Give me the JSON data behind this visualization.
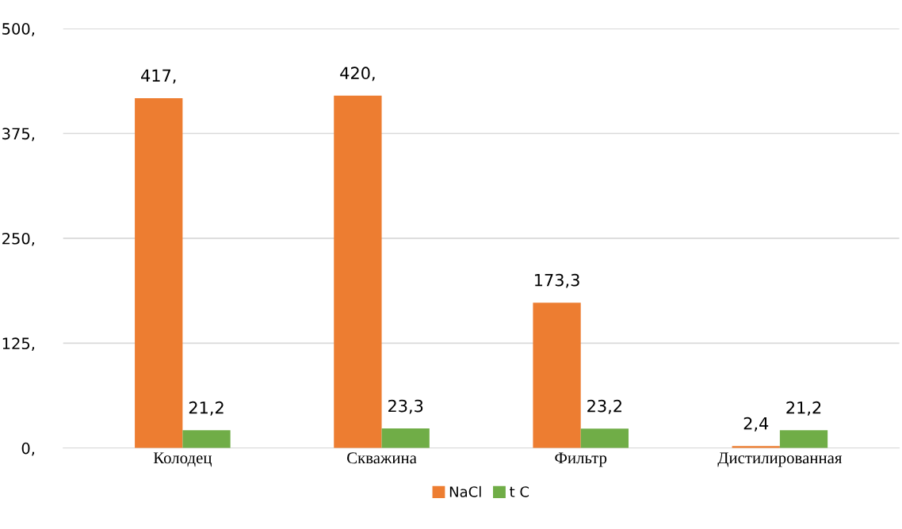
{
  "chart_data": {
    "type": "bar",
    "categories": [
      "Колодец",
      "Скважина",
      "Фильтр",
      "Дистилированная"
    ],
    "series": [
      {
        "name": "NaCl",
        "color": "#ed7d31",
        "values": [
          417,
          420,
          173.3,
          2.4
        ],
        "value_labels": [
          "417,",
          "420,",
          "173,3",
          "2,4"
        ]
      },
      {
        "name": "t C",
        "color": "#70ad47",
        "values": [
          21.2,
          23.3,
          23.2,
          21.2
        ],
        "value_labels": [
          "21,2",
          "23,3",
          "23,2",
          "21,2"
        ]
      }
    ],
    "ylim": [
      0,
      500
    ],
    "yticks": [
      {
        "value": 0,
        "label": "0,"
      },
      {
        "value": 125,
        "label": "125,"
      },
      {
        "value": 250,
        "label": "250,"
      },
      {
        "value": 375,
        "label": "375,"
      },
      {
        "value": 500,
        "label": "500,"
      }
    ],
    "grid": "y",
    "legend": "bottom"
  }
}
